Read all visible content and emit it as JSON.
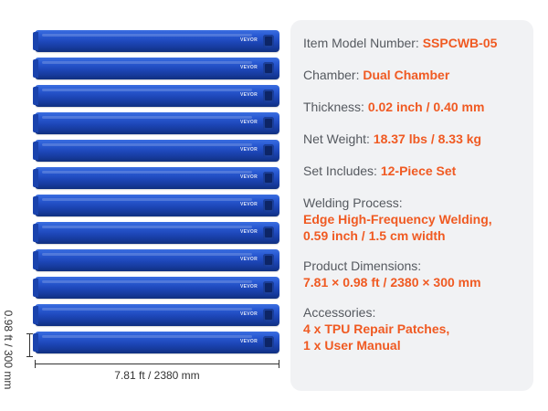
{
  "product": {
    "tube_count": 12,
    "tube_logo": "VEVOR",
    "tube_color": "#1d46b8",
    "dimension_length_label": "7.81 ft / 2380 mm",
    "dimension_width_label": "0.98 ft / 300 mm"
  },
  "specs": {
    "model": {
      "label": "Item Model Number: ",
      "value": "SSPCWB-05"
    },
    "chamber": {
      "label": "Chamber: ",
      "value": "Dual Chamber"
    },
    "thickness": {
      "label": "Thickness: ",
      "value": "0.02 inch / 0.40 mm"
    },
    "weight": {
      "label": "Net Weight: ",
      "value": "18.37 lbs / 8.33 kg"
    },
    "set": {
      "label": "Set Includes: ",
      "value": "12-Piece Set"
    },
    "welding": {
      "label": "Welding Process:",
      "value_line1": "Edge High-Frequency Welding,",
      "value_line2": "0.59 inch / 1.5 cm width"
    },
    "dimensions": {
      "label": "Product Dimensions:",
      "value": "7.81 × 0.98 ft / 2380 × 300 mm"
    },
    "accessories": {
      "label": "Accessories:",
      "value_line1": "4 x TPU Repair Patches,",
      "value_line2": "1 x User Manual"
    }
  },
  "colors": {
    "accent": "#f05a22",
    "label_text": "#55595f",
    "panel_bg": "#f1f2f4"
  }
}
